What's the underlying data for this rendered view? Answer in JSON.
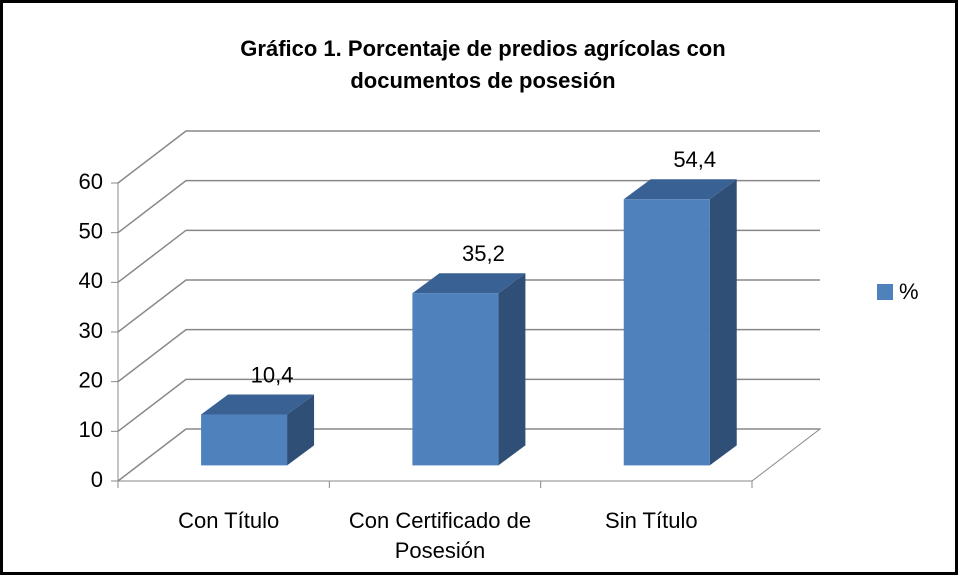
{
  "chart_data": {
    "type": "bar3d",
    "title": "Gráfico 1. Porcentaje de predios agrícolas con documentos de posesión",
    "categories": [
      "Con Título",
      "Con Certificado de Posesión",
      "Sin Título"
    ],
    "series": [
      {
        "name": "%",
        "color": "#4f81bd",
        "values": [
          10.4,
          35.2,
          54.4
        ],
        "value_labels": [
          "10,4",
          "35,2",
          "54,4"
        ]
      }
    ],
    "ylim": [
      0,
      60
    ],
    "yticks": [
      0,
      10,
      20,
      30,
      40,
      50,
      60
    ],
    "grid": true,
    "legend": "right"
  }
}
